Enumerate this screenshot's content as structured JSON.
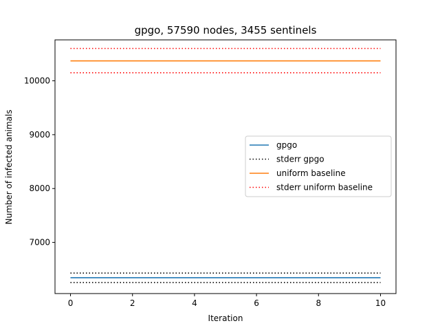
{
  "chart_data": {
    "type": "line",
    "title": "gpgo, 57590 nodes, 3455 sentinels",
    "xlabel": "Iteration",
    "ylabel": "Number of infected animals",
    "xlim": [
      -0.5,
      10.5
    ],
    "ylim": [
      6050,
      10760
    ],
    "x_ticks": [
      0,
      2,
      4,
      6,
      8,
      10
    ],
    "y_ticks": [
      7000,
      8000,
      9000,
      10000
    ],
    "x": [
      0,
      10
    ],
    "series": [
      {
        "name": "gpgo",
        "values": [
          6345,
          6345
        ],
        "color": "#1f77b4",
        "style": "solid"
      },
      {
        "name": "stderr gpgo",
        "values": [
          6430,
          6430
        ],
        "color": "#000000",
        "style": "dotted"
      },
      {
        "name": "stderr gpgo",
        "values": [
          6255,
          6255
        ],
        "color": "#000000",
        "style": "dotted"
      },
      {
        "name": "uniform baseline",
        "values": [
          10370,
          10370
        ],
        "color": "#ff7f0e",
        "style": "solid"
      },
      {
        "name": "stderr uniform baseline",
        "values": [
          10600,
          10600
        ],
        "color": "#ff0000",
        "style": "dotted"
      },
      {
        "name": "stderr uniform baseline",
        "values": [
          10150,
          10150
        ],
        "color": "#ff0000",
        "style": "dotted"
      }
    ],
    "legend": {
      "placement": "center-right",
      "entries": [
        {
          "label": "gpgo",
          "color": "#1f77b4",
          "style": "solid"
        },
        {
          "label": "stderr gpgo",
          "color": "#000000",
          "style": "dotted"
        },
        {
          "label": "uniform baseline",
          "color": "#ff7f0e",
          "style": "solid"
        },
        {
          "label": "stderr uniform baseline",
          "color": "#ff0000",
          "style": "dotted"
        }
      ]
    },
    "grid": false
  }
}
